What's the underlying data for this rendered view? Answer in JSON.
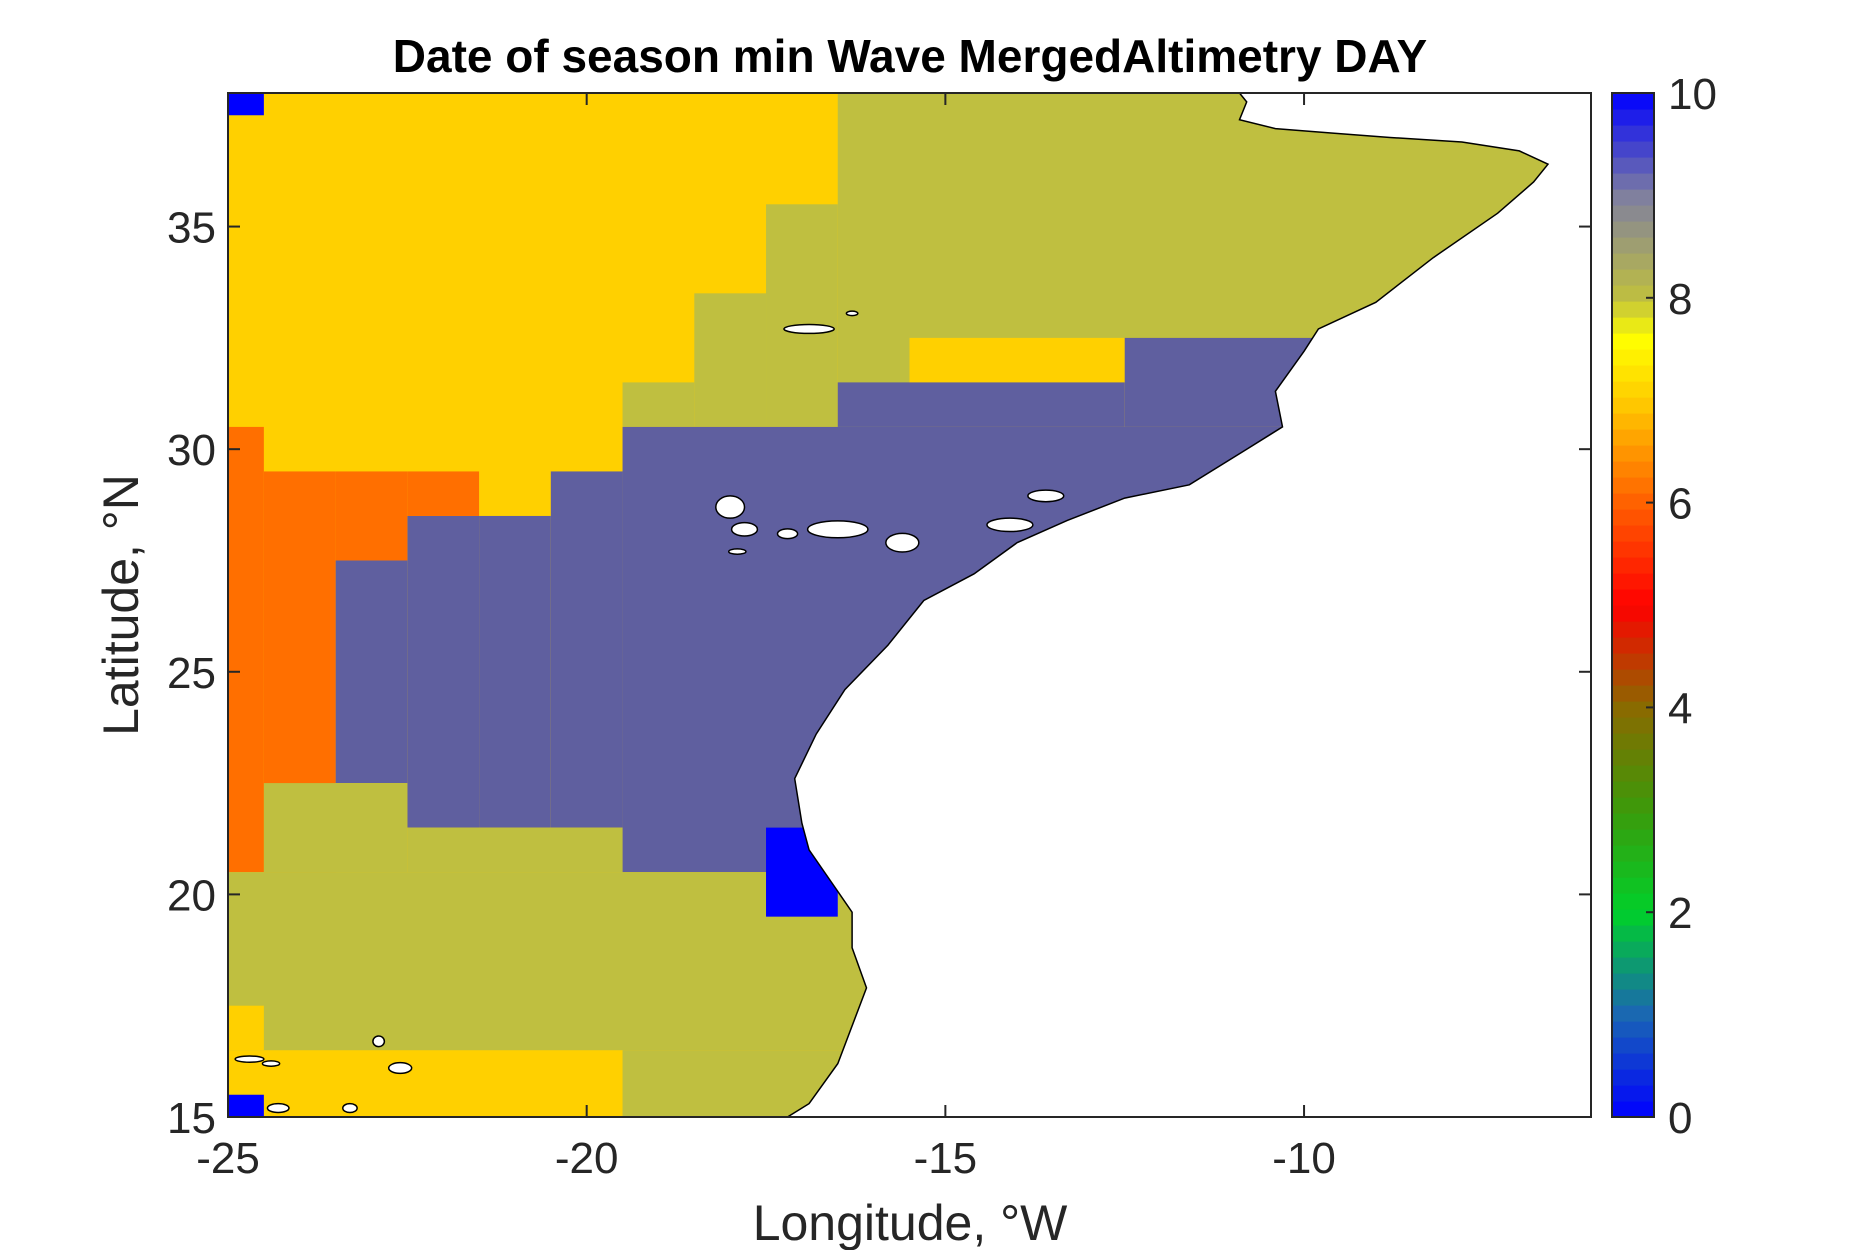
{
  "chart_data": {
    "type": "heatmap",
    "title": "Date of season min Wave MergedAltimetry DAY",
    "xlabel": "Longitude, °W",
    "ylabel": "Latitude, °N",
    "xlim": [
      -25,
      -6
    ],
    "ylim": [
      15,
      38
    ],
    "xticks": [
      -25,
      -20,
      -15,
      -10
    ],
    "xtick_labels": [
      "-25",
      "-20",
      "-15",
      "-10"
    ],
    "yticks": [
      15,
      20,
      25,
      30,
      35
    ],
    "ytick_labels": [
      "15",
      "20",
      "25",
      "30",
      "35"
    ],
    "colorbar": {
      "range": [
        0,
        10
      ],
      "ticks": [
        0,
        2,
        4,
        6,
        8,
        10
      ],
      "tick_labels": [
        "0",
        "2",
        "4",
        "6",
        "8",
        "10"
      ],
      "colormap": "jet-like",
      "colormap_stops": [
        {
          "v": 0,
          "color": "#0000ff"
        },
        {
          "v": 1,
          "color": "#1a66b3"
        },
        {
          "v": 2,
          "color": "#00d02a"
        },
        {
          "v": 3,
          "color": "#3c9a0a"
        },
        {
          "v": 4,
          "color": "#8a6a00"
        },
        {
          "v": 5,
          "color": "#ff0000"
        },
        {
          "v": 6,
          "color": "#ff6000"
        },
        {
          "v": 7,
          "color": "#ffcc00"
        },
        {
          "v": 7.6,
          "color": "#ffff00"
        },
        {
          "v": 8,
          "color": "#bfbf40"
        },
        {
          "v": 9,
          "color": "#7f7f9f"
        },
        {
          "v": 10,
          "color": "#0000ff"
        }
      ]
    },
    "regions": [
      {
        "value": 7,
        "color": "#ffd000",
        "lon": [
          -25,
          -6
        ],
        "lat": [
          15,
          38
        ],
        "note": "base"
      },
      {
        "value": 8,
        "color": "#bfbf40",
        "lon": [
          -15.5,
          -6
        ],
        "lat": [
          32.5,
          38
        ]
      },
      {
        "value": 8,
        "color": "#bfbf40",
        "lon": [
          -16.5,
          -15.5
        ],
        "lat": [
          30.5,
          38
        ]
      },
      {
        "value": 8,
        "color": "#bfbf40",
        "lon": [
          -17.5,
          -16.5
        ],
        "lat": [
          30.5,
          35.5
        ]
      },
      {
        "value": 8,
        "color": "#bfbf40",
        "lon": [
          -18.5,
          -17.5
        ],
        "lat": [
          30.5,
          33.5
        ]
      },
      {
        "value": 8,
        "color": "#bfbf40",
        "lon": [
          -19.5,
          -18.5
        ],
        "lat": [
          30.5,
          31.5
        ]
      },
      {
        "value": 9,
        "color": "#5f5f9f",
        "lon": [
          -12.5,
          -6
        ],
        "lat": [
          30.5,
          32.5
        ]
      },
      {
        "value": 9,
        "color": "#5f5f9f",
        "lon": [
          -16.5,
          -12.5
        ],
        "lat": [
          30.5,
          31.5
        ]
      },
      {
        "value": 9,
        "color": "#5f5f9f",
        "lon": [
          -19.5,
          -6
        ],
        "lat": [
          20.5,
          30.5
        ]
      },
      {
        "value": 9,
        "color": "#5f5f9f",
        "lon": [
          -20.5,
          -19.5
        ],
        "lat": [
          21.5,
          29.5
        ]
      },
      {
        "value": 9,
        "color": "#5f5f9f",
        "lon": [
          -21.5,
          -20.5
        ],
        "lat": [
          21.5,
          28.5
        ]
      },
      {
        "value": 9,
        "color": "#5f5f9f",
        "lon": [
          -22.5,
          -21.5
        ],
        "lat": [
          21.5,
          28.5
        ]
      },
      {
        "value": 9,
        "color": "#5f5f9f",
        "lon": [
          -23.5,
          -22.5
        ],
        "lat": [
          22.5,
          27.5
        ]
      },
      {
        "value": 6,
        "color": "#ff6f00",
        "lon": [
          -25,
          -24.5
        ],
        "lat": [
          20.5,
          30.5
        ]
      },
      {
        "value": 6,
        "color": "#ff6f00",
        "lon": [
          -24.5,
          -23.5
        ],
        "lat": [
          20.5,
          29.5
        ]
      },
      {
        "value": 6,
        "color": "#ff6f00",
        "lon": [
          -23.5,
          -22.5
        ],
        "lat": [
          27.5,
          29.5
        ]
      },
      {
        "value": 6,
        "color": "#ff6f00",
        "lon": [
          -22.5,
          -21.5
        ],
        "lat": [
          28.5,
          29.5
        ]
      },
      {
        "value": 8,
        "color": "#bfbf40",
        "lon": [
          -25,
          -6
        ],
        "lat": [
          16.5,
          20.5
        ]
      },
      {
        "value": 8,
        "color": "#bfbf40",
        "lon": [
          -24.5,
          -22.5
        ],
        "lat": [
          20.5,
          22.5
        ]
      },
      {
        "value": 8,
        "color": "#bfbf40",
        "lon": [
          -22.5,
          -19.5
        ],
        "lat": [
          20.5,
          21.5
        ]
      },
      {
        "value": 8,
        "color": "#bfbf40",
        "lon": [
          -19.5,
          -6
        ],
        "lat": [
          15,
          16.5
        ]
      },
      {
        "value": 7,
        "color": "#ffd000",
        "lon": [
          -25,
          -24.5
        ],
        "lat": [
          16.5,
          17.5
        ]
      },
      {
        "value": 0,
        "color": "#0000ff",
        "lon": [
          -17.5,
          -16.5
        ],
        "lat": [
          19.5,
          21.5
        ]
      },
      {
        "value": 0,
        "color": "#0000ff",
        "lon": [
          -25,
          -24.5
        ],
        "lat": [
          37.5,
          38
        ]
      },
      {
        "value": 0,
        "color": "#0000ff",
        "lon": [
          -25,
          -24.5
        ],
        "lat": [
          15,
          15.5
        ]
      }
    ],
    "land_coastline": [
      [
        -10.9,
        38
      ],
      [
        -10.8,
        37.8
      ],
      [
        -10.9,
        37.4
      ],
      [
        -10.4,
        37.2
      ],
      [
        -9.6,
        37.1
      ],
      [
        -8.8,
        37.0
      ],
      [
        -7.8,
        36.9
      ],
      [
        -7.0,
        36.7
      ],
      [
        -6.6,
        36.4
      ],
      [
        -6.8,
        36.0
      ],
      [
        -7.3,
        35.3
      ],
      [
        -8.2,
        34.3
      ],
      [
        -9.0,
        33.3
      ],
      [
        -9.8,
        32.7
      ],
      [
        -10.0,
        32.2
      ],
      [
        -10.4,
        31.3
      ],
      [
        -10.3,
        30.5
      ],
      [
        -10.8,
        30.0
      ],
      [
        -11.6,
        29.2
      ],
      [
        -12.5,
        28.9
      ],
      [
        -13.3,
        28.4
      ],
      [
        -14.0,
        27.9
      ],
      [
        -14.6,
        27.2
      ],
      [
        -15.3,
        26.6
      ],
      [
        -15.8,
        25.6
      ],
      [
        -16.4,
        24.6
      ],
      [
        -16.8,
        23.6
      ],
      [
        -17.1,
        22.6
      ],
      [
        -17.0,
        21.6
      ],
      [
        -16.9,
        21.0
      ],
      [
        -16.6,
        20.3
      ],
      [
        -16.3,
        19.6
      ],
      [
        -16.3,
        18.8
      ],
      [
        -16.1,
        17.9
      ],
      [
        -16.5,
        16.2
      ],
      [
        -16.9,
        15.3
      ],
      [
        -17.2,
        15
      ],
      [
        -6,
        15
      ],
      [
        -6,
        38
      ]
    ],
    "islands": [
      {
        "cx": -18.0,
        "cy": 28.7,
        "rx": 0.2,
        "ry": 0.25
      },
      {
        "cx": -17.8,
        "cy": 28.2,
        "rx": 0.18,
        "ry": 0.15
      },
      {
        "cx": -17.2,
        "cy": 28.1,
        "rx": 0.14,
        "ry": 0.11
      },
      {
        "cx": -16.5,
        "cy": 28.2,
        "rx": 0.42,
        "ry": 0.19
      },
      {
        "cx": -15.6,
        "cy": 27.9,
        "rx": 0.23,
        "ry": 0.21
      },
      {
        "cx": -14.1,
        "cy": 28.3,
        "rx": 0.32,
        "ry": 0.15
      },
      {
        "cx": -13.6,
        "cy": 28.95,
        "rx": 0.25,
        "ry": 0.13
      },
      {
        "cx": -17.9,
        "cy": 27.7,
        "rx": 0.12,
        "ry": 0.06
      },
      {
        "cx": -16.9,
        "cy": 32.7,
        "rx": 0.35,
        "ry": 0.1
      },
      {
        "cx": -16.3,
        "cy": 33.05,
        "rx": 0.08,
        "ry": 0.05
      },
      {
        "cx": -24.7,
        "cy": 16.3,
        "rx": 0.2,
        "ry": 0.07
      },
      {
        "cx": -24.4,
        "cy": 16.2,
        "rx": 0.12,
        "ry": 0.06
      },
      {
        "cx": -22.9,
        "cy": 16.7,
        "rx": 0.08,
        "ry": 0.12
      },
      {
        "cx": -22.6,
        "cy": 16.1,
        "rx": 0.16,
        "ry": 0.12
      },
      {
        "cx": -24.3,
        "cy": 15.2,
        "rx": 0.15,
        "ry": 0.1
      },
      {
        "cx": -23.3,
        "cy": 15.2,
        "rx": 0.1,
        "ry": 0.1
      }
    ]
  }
}
